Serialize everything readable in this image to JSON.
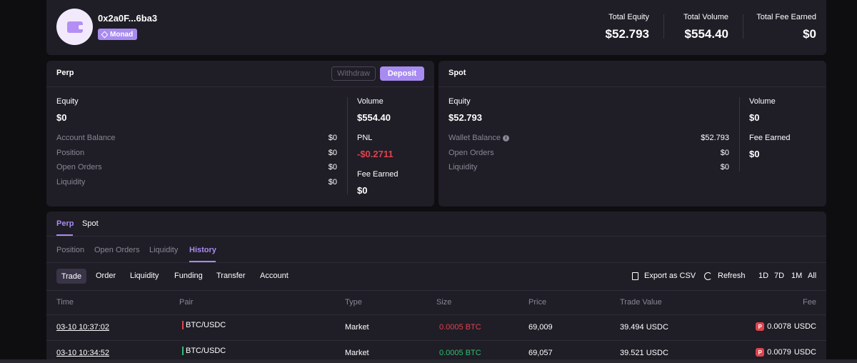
{
  "account": {
    "address": "0x2a0F...6ba3",
    "network_badge": "Monad",
    "stats": [
      {
        "label": "Total Equity",
        "value": "$52.793"
      },
      {
        "label": "Total Volume",
        "value": "$554.40"
      },
      {
        "label": "Total Fee Earned",
        "value": "$0"
      }
    ]
  },
  "perp": {
    "title": "Perp",
    "withdraw_label": "Withdraw",
    "deposit_label": "Deposit",
    "equity_label": "Equity",
    "equity_value": "$0",
    "rows": [
      {
        "label": "Account Balance",
        "value": "$0"
      },
      {
        "label": "Position",
        "value": "$0"
      },
      {
        "label": "Open Orders",
        "value": "$0"
      },
      {
        "label": "Liquidity",
        "value": "$0"
      }
    ],
    "volume_label": "Volume",
    "volume_value": "$554.40",
    "pnl_label": "PNL",
    "pnl_value": "-$0.2711",
    "fee_label": "Fee Earned",
    "fee_value": "$0"
  },
  "spot": {
    "title": "Spot",
    "equity_label": "Equity",
    "equity_value": "$52.793",
    "rows": [
      {
        "label": "Wallet Balance",
        "value": "$52.793"
      },
      {
        "label": "Open Orders",
        "value": "$0"
      },
      {
        "label": "Liquidity",
        "value": "$0"
      }
    ],
    "volume_label": "Volume",
    "volume_value": "$0",
    "fee_label": "Fee Earned",
    "fee_value": "$0"
  },
  "tabs": {
    "market": [
      "Perp",
      "Spot"
    ],
    "sections": [
      "Position",
      "Open Orders",
      "Liquidity",
      "History"
    ],
    "history": [
      "Trade",
      "Order",
      "Liquidity",
      "Funding",
      "Transfer",
      "Account"
    ],
    "export_label": "Export as CSV",
    "refresh_label": "Refresh",
    "ranges": [
      "1D",
      "7D",
      "1M",
      "All"
    ]
  },
  "table": {
    "headers": [
      "Time",
      "Pair",
      "Type",
      "Size",
      "Price",
      "Trade Value",
      "Fee"
    ],
    "rows": [
      {
        "time": "03-10 10:37:02",
        "pair": "BTC/USDC",
        "side_color": "#e0434c",
        "type": "Market",
        "size": "0.0005",
        "size_unit": "BTC",
        "size_color": "#e0434c",
        "price": "69,009",
        "value": "39.494",
        "value_unit": "USDC",
        "fee_badge": "P",
        "fee": "0.0078",
        "fee_unit": "USDC"
      },
      {
        "time": "03-10 10:34:52",
        "pair": "BTC/USDC",
        "side_color": "#2fbf71",
        "type": "Market",
        "size": "0.0005",
        "size_unit": "BTC",
        "size_color": "#2fbf71",
        "price": "69,057",
        "value": "39.521",
        "value_unit": "USDC",
        "fee_badge": "P",
        "fee": "0.0079",
        "fee_unit": "USDC"
      }
    ]
  },
  "colors": {
    "accent": "#a88bf0",
    "negative": "#e0434c",
    "positive": "#2fbf71",
    "panel": "#1f1d26"
  }
}
